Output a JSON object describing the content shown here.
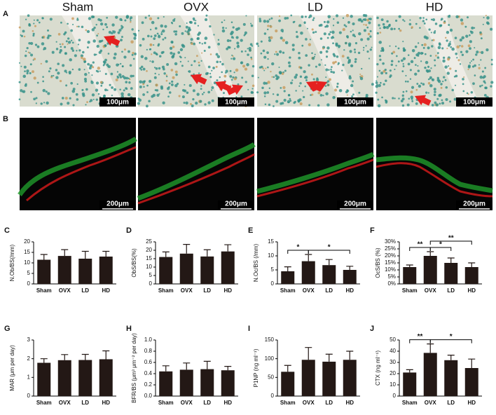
{
  "figure": {
    "panel_a_label": "A",
    "panel_b_label": "B",
    "columns": [
      "Sham",
      "OVX",
      "LD",
      "HD"
    ],
    "scale_a": "100μm",
    "scale_b": "200μm"
  },
  "chart_data": [
    {
      "type": "bar",
      "panel_label": "C",
      "y_label": "N.Ob/BS(/mm)",
      "categories": [
        "Sham",
        "OVX",
        "LD",
        "HD"
      ],
      "values": [
        11.5,
        13.3,
        12,
        13
      ],
      "errors": [
        2.5,
        3,
        3.5,
        2.5
      ],
      "color": "#231815",
      "ylim": [
        0,
        20
      ],
      "yticks": [
        0,
        5,
        10,
        15,
        20
      ],
      "significance": []
    },
    {
      "type": "bar",
      "panel_label": "D",
      "y_label": "ObS/BS(%)",
      "categories": [
        "Sham",
        "OVX",
        "LD",
        "HD"
      ],
      "values": [
        16,
        18,
        16.3,
        19.3
      ],
      "errors": [
        3,
        5.5,
        4,
        4
      ],
      "color": "#231815",
      "ylim": [
        0,
        25
      ],
      "yticks": [
        0,
        5,
        10,
        15,
        20,
        25
      ],
      "significance": []
    },
    {
      "type": "bar",
      "panel_label": "E",
      "y_label": "N.Oc/BS (/mm)",
      "categories": [
        "Sham",
        "OVX",
        "LD",
        "HD"
      ],
      "values": [
        4.5,
        8.1,
        6.7,
        5
      ],
      "errors": [
        1.6,
        2.4,
        2,
        1.3
      ],
      "color": "#231815",
      "ylim": [
        0,
        15
      ],
      "yticks": [
        0,
        5,
        10,
        15
      ],
      "significance": [
        {
          "label": "*",
          "from": "Sham",
          "to": "OVX"
        },
        {
          "label": "*",
          "from": "OVX",
          "to": "HD"
        }
      ]
    },
    {
      "type": "bar",
      "panel_label": "F",
      "y_label": "OcS/BS (%)",
      "categories": [
        "Sham",
        "OVX",
        "LD",
        "HD"
      ],
      "values": [
        12,
        20,
        15,
        12
      ],
      "errors": [
        1.5,
        3,
        3.5,
        3
      ],
      "color": "#231815",
      "ylim": [
        0,
        30
      ],
      "yticks": [
        {
          "value": 0,
          "label": "0%"
        },
        {
          "value": 5,
          "label": "5%"
        },
        {
          "value": 10,
          "label": "10%"
        },
        {
          "value": 15,
          "label": "15%"
        },
        {
          "value": 20,
          "label": "20%"
        },
        {
          "value": 25,
          "label": "25%"
        },
        {
          "value": 30,
          "label": "30%"
        }
      ],
      "significance": [
        {
          "label": "**",
          "from": "Sham",
          "to": "OVX"
        },
        {
          "label": "*",
          "from": "OVX",
          "to": "LD"
        },
        {
          "label": "**",
          "from": "OVX",
          "to": "HD"
        }
      ]
    },
    {
      "type": "bar",
      "panel_label": "G",
      "y_label": "MAR (μm per day)",
      "categories": [
        "Sham",
        "OVX",
        "LD",
        "HD"
      ],
      "values": [
        1.78,
        1.92,
        1.93,
        1.97
      ],
      "errors": [
        0.22,
        0.3,
        0.3,
        0.45
      ],
      "color": "#231815",
      "ylim": [
        0,
        3
      ],
      "yticks": [
        0,
        1,
        2,
        3
      ],
      "significance": []
    },
    {
      "type": "bar",
      "panel_label": "H",
      "y_label": "BFR/BS (μm³ μm⁻² per day)",
      "categories": [
        "Sham",
        "OVX",
        "LD",
        "HD"
      ],
      "values": [
        0.44,
        0.47,
        0.48,
        0.46
      ],
      "errors": [
        0.1,
        0.12,
        0.14,
        0.07
      ],
      "color": "#231815",
      "ylim": [
        0,
        1
      ],
      "yticks": [
        {
          "value": 0,
          "label": "0.0"
        },
        {
          "value": 0.2,
          "label": "0.2"
        },
        {
          "value": 0.4,
          "label": "0.4"
        },
        {
          "value": 0.6,
          "label": "0.6"
        },
        {
          "value": 0.8,
          "label": "0.8"
        },
        {
          "value": 1,
          "label": "1.0"
        }
      ],
      "significance": []
    },
    {
      "type": "bar",
      "panel_label": "I",
      "y_label": "P1NP (ng ml⁻¹)",
      "categories": [
        "Sham",
        "OVX",
        "LD",
        "HD"
      ],
      "values": [
        65,
        97,
        92,
        97
      ],
      "errors": [
        17,
        33,
        20,
        23
      ],
      "color": "#231815",
      "ylim": [
        0,
        150
      ],
      "yticks": [
        0,
        50,
        100,
        150
      ],
      "significance": []
    },
    {
      "type": "bar",
      "panel_label": "J",
      "y_label": "CTX (ng ml⁻¹)",
      "categories": [
        "Sham",
        "OVX",
        "LD",
        "HD"
      ],
      "values": [
        21,
        38.5,
        32,
        25
      ],
      "errors": [
        2.5,
        8,
        4.5,
        8
      ],
      "color": "#231815",
      "ylim": [
        0,
        50
      ],
      "yticks": [
        0,
        10,
        20,
        30,
        40,
        50
      ],
      "significance": [
        {
          "label": "**",
          "from": "Sham",
          "to": "OVX"
        },
        {
          "label": "*",
          "from": "OVX",
          "to": "HD"
        }
      ]
    }
  ]
}
